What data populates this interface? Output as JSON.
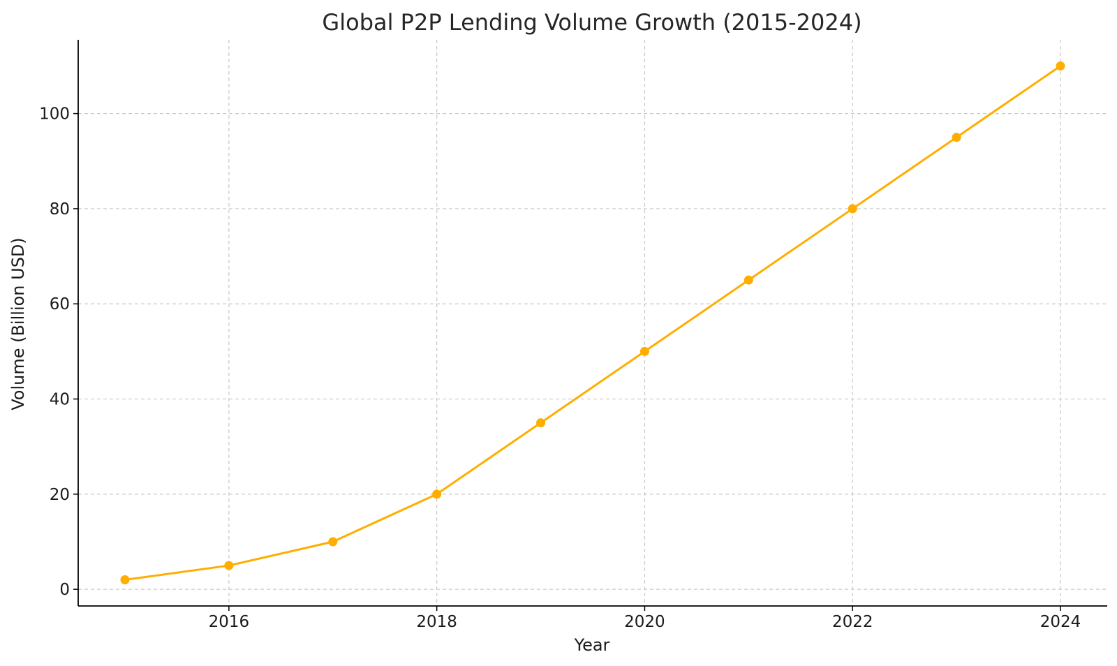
{
  "chart_data": {
    "type": "line",
    "title": "Global P2P Lending Volume Growth (2015-2024)",
    "xlabel": "Year",
    "ylabel": "Volume (Billion USD)",
    "x": [
      2015,
      2016,
      2017,
      2018,
      2019,
      2020,
      2021,
      2022,
      2023,
      2024
    ],
    "series": [
      {
        "values": [
          2,
          5,
          10,
          20,
          35,
          50,
          65,
          80,
          95,
          110
        ],
        "color": "#ffae00"
      }
    ],
    "xlim": [
      2014.55,
      2024.45
    ],
    "ylim": [
      -3.5,
      115.5
    ],
    "xticks": [
      2016,
      2018,
      2020,
      2022,
      2024
    ],
    "xtick_labels": [
      "2016",
      "2018",
      "2020",
      "2022",
      "2024"
    ],
    "yticks": [
      0,
      20,
      40,
      60,
      80,
      100
    ],
    "ytick_labels": [
      "0",
      "20",
      "40",
      "60",
      "80",
      "100"
    ],
    "grid": true,
    "legend": "none"
  }
}
